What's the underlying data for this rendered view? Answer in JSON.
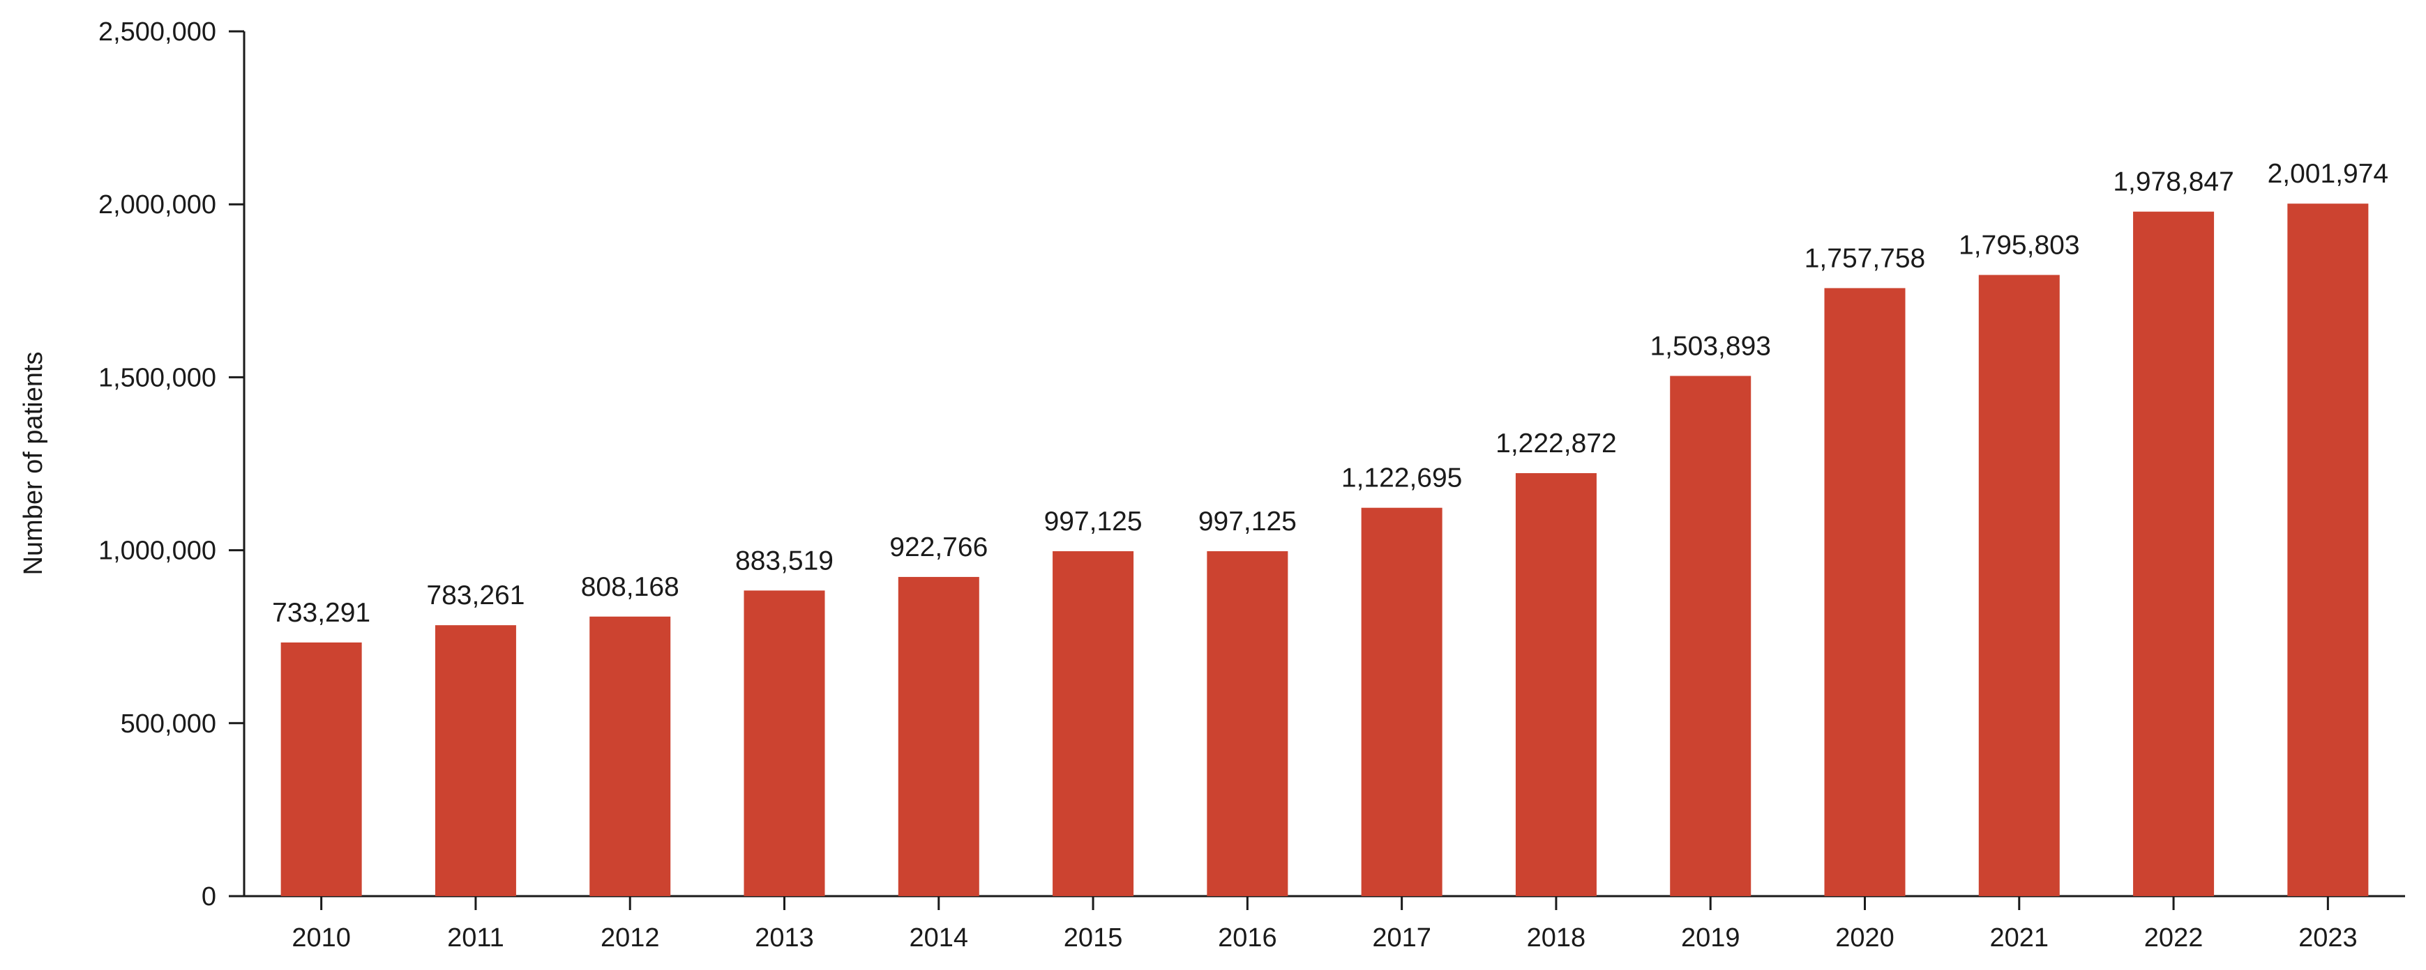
{
  "chart_data": {
    "type": "bar",
    "ylabel": "Number of patients",
    "xlabel": "",
    "ylim": [
      0,
      2500000
    ],
    "yticks": [
      0,
      500000,
      1000000,
      1500000,
      2000000,
      2500000
    ],
    "ytick_labels": [
      "0",
      "500,000",
      "1,000,000",
      "1,500,000",
      "2,000,000",
      "2,500,000"
    ],
    "grid": false,
    "legend": "none",
    "bar_color": "#CC4330",
    "categories": [
      "2010",
      "2011",
      "2012",
      "2013",
      "2014",
      "2015",
      "2016",
      "2017",
      "2018",
      "2019",
      "2020",
      "2021",
      "2022",
      "2023"
    ],
    "values": [
      733291,
      783261,
      808168,
      883519,
      922766,
      997125,
      997125,
      1122695,
      1222872,
      1503893,
      1757758,
      1795803,
      1978847,
      2001974
    ],
    "value_labels": [
      "733,291",
      "783,261",
      "808,168",
      "883,519",
      "922,766",
      "997,125",
      "997,125",
      "1,122,695",
      "1,222,872",
      "1,503,893",
      "1,757,758",
      "1,795,803",
      "1,978,847",
      "2,001,974"
    ]
  }
}
